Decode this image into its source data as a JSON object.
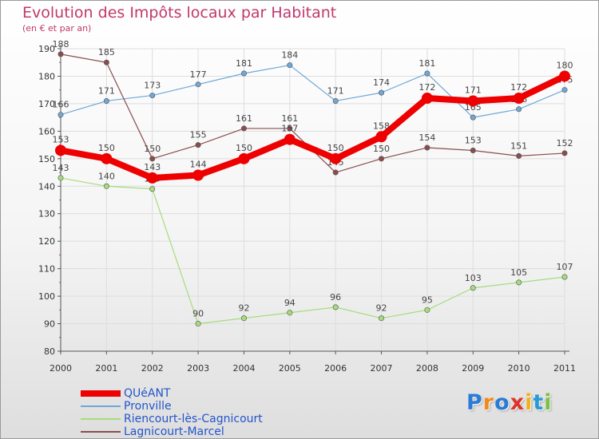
{
  "header": {
    "title": "Evolution des Impôts locaux par Habitant",
    "subtitle": "(en € et par an)"
  },
  "logo": {
    "letters": [
      "P",
      "r",
      "o",
      "x",
      "i",
      "t",
      "i"
    ],
    "colors": [
      "#2a7bd5",
      "#f08a1c",
      "#2a7bd5",
      "#e0332a",
      "#f0b21c",
      "#2a9ad5",
      "#7bc043"
    ]
  },
  "chart_data": {
    "type": "line",
    "title": "Evolution des Impôts locaux par Habitant",
    "subtitle": "(en € et par an)",
    "xlabel": "",
    "ylabel": "",
    "ylim": [
      80,
      190
    ],
    "yticks": [
      80,
      90,
      100,
      110,
      120,
      130,
      140,
      150,
      160,
      170,
      180,
      190
    ],
    "categories": [
      "2000",
      "2001",
      "2002",
      "2003",
      "2004",
      "2005",
      "2006",
      "2007",
      "2008",
      "2009",
      "2010",
      "2011"
    ],
    "grid": true,
    "legend_position": "bottom-left",
    "series": [
      {
        "name": "QUéANT",
        "color": "#ee0000",
        "emphasis": true,
        "values": [
          153,
          150,
          143,
          144,
          150,
          157,
          150,
          158,
          172,
          171,
          172,
          180
        ]
      },
      {
        "name": "Pronville",
        "color": "#6fa7d6",
        "emphasis": false,
        "values": [
          166,
          171,
          173,
          177,
          181,
          184,
          171,
          174,
          181,
          165,
          168,
          175
        ]
      },
      {
        "name": "Riencourt-lès-Cagnicourt",
        "color": "#a6dc7c",
        "emphasis": false,
        "values": [
          143,
          140,
          139,
          90,
          92,
          94,
          96,
          92,
          95,
          103,
          105,
          107
        ]
      },
      {
        "name": "Lagnicourt-Marcel",
        "color": "#8a4d4d",
        "emphasis": false,
        "values": [
          188,
          185,
          150,
          155,
          161,
          161,
          145,
          150,
          154,
          153,
          151,
          152
        ]
      }
    ]
  }
}
